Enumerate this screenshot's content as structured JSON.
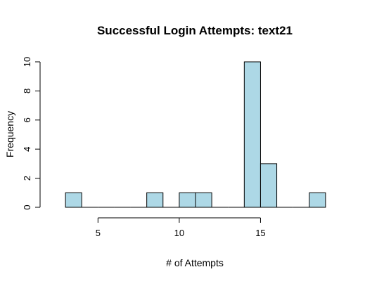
{
  "chart_data": {
    "type": "bar",
    "title": "Successful Login Attempts: text21",
    "xlabel": "# of Attempts",
    "ylabel": "Frequency",
    "xlim": [
      2,
      20
    ],
    "ylim": [
      0,
      10
    ],
    "x_ticks": [
      5,
      10,
      15
    ],
    "y_ticks": [
      0,
      2,
      4,
      6,
      8,
      10
    ],
    "bin_width": 1,
    "bars": [
      {
        "bin_start": 3,
        "bin_end": 4,
        "count": 1
      },
      {
        "bin_start": 4,
        "bin_end": 5,
        "count": 0
      },
      {
        "bin_start": 5,
        "bin_end": 6,
        "count": 0
      },
      {
        "bin_start": 6,
        "bin_end": 7,
        "count": 0
      },
      {
        "bin_start": 7,
        "bin_end": 8,
        "count": 0
      },
      {
        "bin_start": 8,
        "bin_end": 9,
        "count": 1
      },
      {
        "bin_start": 9,
        "bin_end": 10,
        "count": 0
      },
      {
        "bin_start": 10,
        "bin_end": 11,
        "count": 1
      },
      {
        "bin_start": 11,
        "bin_end": 12,
        "count": 1
      },
      {
        "bin_start": 12,
        "bin_end": 13,
        "count": 0
      },
      {
        "bin_start": 13,
        "bin_end": 14,
        "count": 0
      },
      {
        "bin_start": 14,
        "bin_end": 15,
        "count": 10
      },
      {
        "bin_start": 15,
        "bin_end": 16,
        "count": 3
      },
      {
        "bin_start": 16,
        "bin_end": 17,
        "count": 0
      },
      {
        "bin_start": 17,
        "bin_end": 18,
        "count": 0
      },
      {
        "bin_start": 18,
        "bin_end": 19,
        "count": 1
      }
    ],
    "bar_color": "#add8e6",
    "grid": false,
    "legend": "none"
  }
}
